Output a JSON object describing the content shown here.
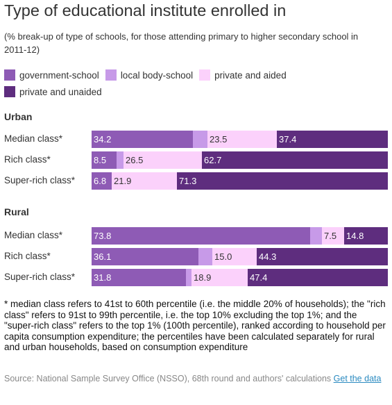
{
  "title": "Type of educational institute enrolled in",
  "subtitle": "(% break-up of type of schools, for those attending primary to higher secondary school in 2011-12)",
  "legend": [
    {
      "label": "government-school",
      "color": "#8e5bb5"
    },
    {
      "label": "local body-school",
      "color": "#c79ae8"
    },
    {
      "label": "private and aided",
      "color": "#fbd1fb"
    },
    {
      "label": "private and unaided",
      "color": "#5e2d7e"
    }
  ],
  "chart_data": {
    "type": "bar",
    "orientation": "horizontal-stacked-percent",
    "series_names": [
      "government-school",
      "local body-school",
      "private and aided",
      "private and unaided"
    ],
    "groups": [
      {
        "name": "Urban",
        "categories": [
          "Median class*",
          "Rich class*",
          "Super-rich class*"
        ],
        "values": [
          [
            34.2,
            4.9,
            23.5,
            37.4
          ],
          [
            8.5,
            2.3,
            26.5,
            62.7
          ],
          [
            6.8,
            0.0,
            21.9,
            71.3
          ]
        ],
        "labels": [
          [
            "34.2",
            "",
            "23.5",
            "37.4"
          ],
          [
            "8.5",
            "",
            "26.5",
            "62.7"
          ],
          [
            "6.8",
            "",
            "21.9",
            "71.3"
          ]
        ]
      },
      {
        "name": "Rural",
        "categories": [
          "Median class*",
          "Rich class*",
          "Super-rich class*"
        ],
        "values": [
          [
            73.8,
            3.9,
            7.5,
            14.8
          ],
          [
            36.1,
            4.6,
            15.0,
            44.3
          ],
          [
            31.8,
            1.9,
            18.9,
            47.4
          ]
        ],
        "labels": [
          [
            "73.8",
            "",
            "7.5",
            "14.8"
          ],
          [
            "36.1",
            "",
            "15.0",
            "44.3"
          ],
          [
            "31.8",
            "",
            "18.9",
            "47.4"
          ]
        ]
      }
    ],
    "xlim": [
      0,
      100
    ]
  },
  "footnote": "* median class refers to 41st to 60th percentile (i.e. the middle 20% of households); the \"rich class\" refers to 91st to 99th percentile, i.e. the top 10% excluding the top 1%; and the \"super-rich class\" refers to the top 1% (100th percentile), ranked according to household per capita consumption expenditure; the percentiles have been calculated separately for rural and urban households, based on consumption expenditure",
  "source": {
    "text": "Source: National Sample Survey Office (NSSO), 68th round and authors' calculations",
    "link": "Get the data"
  }
}
